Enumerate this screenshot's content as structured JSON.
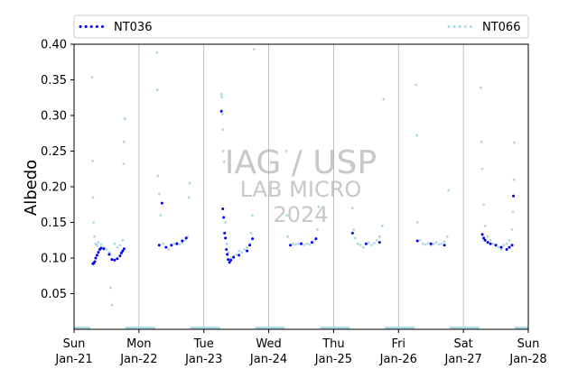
{
  "chart_data": {
    "type": "scatter",
    "title": "",
    "xlabel": "",
    "ylabel": "Albedo",
    "xlim": [
      "2024-01-21",
      "2024-01-28"
    ],
    "ylim": [
      0.0,
      0.4
    ],
    "yticks": [
      "0.05",
      "0.10",
      "0.15",
      "0.20",
      "0.25",
      "0.30",
      "0.35",
      "0.40"
    ],
    "xticks": [
      {
        "day": "Sun",
        "date": "Jan-21"
      },
      {
        "day": "Mon",
        "date": "Jan-22"
      },
      {
        "day": "Tue",
        "date": "Jan-23"
      },
      {
        "day": "Wed",
        "date": "Jan-24"
      },
      {
        "day": "Thu",
        "date": "Jan-25"
      },
      {
        "day": "Fri",
        "date": "Jan-26"
      },
      {
        "day": "Sat",
        "date": "Jan-27"
      },
      {
        "day": "Sun",
        "date": "Jan-28"
      }
    ],
    "grid": "vertical-at-day-boundaries",
    "legend_position": "top-outside",
    "watermark": [
      "IAG / USP",
      "LAB MICRO",
      "2024"
    ],
    "series": [
      {
        "name": "NT036",
        "color": "#0000ee",
        "x": [
          "2024-01-21T07:00",
          "2024-01-21T07:20",
          "2024-01-21T07:40",
          "2024-01-21T08:00",
          "2024-01-21T08:30",
          "2024-01-21T09:00",
          "2024-01-21T09:30",
          "2024-01-21T10:00",
          "2024-01-21T11:00",
          "2024-01-21T13:00",
          "2024-01-21T14:00",
          "2024-01-21T15:00",
          "2024-01-21T16:00",
          "2024-01-21T17:00",
          "2024-01-21T17:30",
          "2024-01-21T18:00",
          "2024-01-21T18:30",
          "2024-01-22T07:30",
          "2024-01-22T08:30",
          "2024-01-22T10:00",
          "2024-01-22T12:00",
          "2024-01-22T14:00",
          "2024-01-22T16:00",
          "2024-01-22T17:30",
          "2024-01-23T06:30",
          "2024-01-23T07:00",
          "2024-01-23T07:20",
          "2024-01-23T07:40",
          "2024-01-23T08:00",
          "2024-01-23T08:20",
          "2024-01-23T08:40",
          "2024-01-23T09:00",
          "2024-01-23T09:30",
          "2024-01-23T10:00",
          "2024-01-23T11:00",
          "2024-01-23T13:00",
          "2024-01-23T16:00",
          "2024-01-23T17:00",
          "2024-01-23T18:00",
          "2024-01-24T08:00",
          "2024-01-24T12:00",
          "2024-01-24T16:00",
          "2024-01-24T17:30",
          "2024-01-25T07:00",
          "2024-01-25T12:00",
          "2024-01-25T17:00",
          "2024-01-26T07:00",
          "2024-01-26T12:00",
          "2024-01-26T17:00",
          "2024-01-27T07:00",
          "2024-01-27T07:30",
          "2024-01-27T08:00",
          "2024-01-27T09:00",
          "2024-01-27T10:00",
          "2024-01-27T12:00",
          "2024-01-27T14:00",
          "2024-01-27T16:00",
          "2024-01-27T17:00",
          "2024-01-27T18:00",
          "2024-01-27T18:30"
        ],
        "y": [
          0.092,
          0.093,
          0.095,
          0.1,
          0.104,
          0.108,
          0.112,
          0.114,
          0.113,
          0.105,
          0.098,
          0.097,
          0.099,
          0.103,
          0.107,
          0.11,
          0.113,
          0.118,
          0.177,
          0.115,
          0.118,
          0.12,
          0.124,
          0.128,
          0.306,
          0.169,
          0.157,
          0.135,
          0.128,
          0.112,
          0.105,
          0.098,
          0.094,
          0.097,
          0.101,
          0.104,
          0.11,
          0.118,
          0.127,
          0.118,
          0.12,
          0.122,
          0.127,
          0.135,
          0.12,
          0.122,
          0.124,
          0.12,
          0.118,
          0.133,
          0.128,
          0.125,
          0.122,
          0.12,
          0.118,
          0.115,
          0.112,
          0.115,
          0.118,
          0.187
        ]
      },
      {
        "name": "NT066",
        "color": "#add8e6",
        "x": [
          "2024-01-21T06:40",
          "2024-01-21T06:50",
          "2024-01-21T07:00",
          "2024-01-21T07:15",
          "2024-01-21T07:30",
          "2024-01-21T08:00",
          "2024-01-21T08:30",
          "2024-01-21T09:00",
          "2024-01-21T10:00",
          "2024-01-21T11:00",
          "2024-01-21T12:00",
          "2024-01-21T13:00",
          "2024-01-21T13:30",
          "2024-01-21T14:00",
          "2024-01-21T15:00",
          "2024-01-21T16:00",
          "2024-01-21T17:00",
          "2024-01-21T18:00",
          "2024-01-21T18:20",
          "2024-01-21T18:30",
          "2024-01-21T18:40",
          "2024-01-21T18:50",
          "2024-01-22T06:40",
          "2024-01-22T06:50",
          "2024-01-22T07:00",
          "2024-01-22T07:30",
          "2024-01-22T08:00",
          "2024-01-22T09:00",
          "2024-01-22T10:00",
          "2024-01-22T11:00",
          "2024-01-22T12:00",
          "2024-01-22T13:00",
          "2024-01-22T14:00",
          "2024-01-22T15:00",
          "2024-01-22T16:00",
          "2024-01-22T17:00",
          "2024-01-22T18:00",
          "2024-01-22T18:30",
          "2024-01-22T18:45",
          "2024-01-23T06:30",
          "2024-01-23T06:40",
          "2024-01-23T06:50",
          "2024-01-23T07:00",
          "2024-01-23T07:10",
          "2024-01-23T07:30",
          "2024-01-23T08:00",
          "2024-01-23T08:30",
          "2024-01-23T09:00",
          "2024-01-23T10:00",
          "2024-01-23T11:00",
          "2024-01-23T12:00",
          "2024-01-23T13:00",
          "2024-01-23T14:00",
          "2024-01-23T15:00",
          "2024-01-23T16:00",
          "2024-01-23T17:00",
          "2024-01-23T17:30",
          "2024-01-23T18:00",
          "2024-01-23T18:30",
          "2024-01-24T06:30",
          "2024-01-24T06:45",
          "2024-01-24T07:00",
          "2024-01-24T08:00",
          "2024-01-24T09:00",
          "2024-01-24T10:00",
          "2024-01-24T11:00",
          "2024-01-24T12:00",
          "2024-01-24T13:00",
          "2024-01-24T14:00",
          "2024-01-24T15:00",
          "2024-01-24T16:00",
          "2024-01-24T17:00",
          "2024-01-24T18:00",
          "2024-01-24T18:30",
          "2024-01-25T06:30",
          "2024-01-25T07:00",
          "2024-01-25T07:30",
          "2024-01-25T08:00",
          "2024-01-25T09:00",
          "2024-01-25T10:00",
          "2024-01-25T11:00",
          "2024-01-25T12:00",
          "2024-01-25T13:00",
          "2024-01-25T14:00",
          "2024-01-25T15:00",
          "2024-01-25T16:00",
          "2024-01-25T17:00",
          "2024-01-25T18:00",
          "2024-01-25T18:30",
          "2024-01-26T06:30",
          "2024-01-26T06:45",
          "2024-01-26T07:00",
          "2024-01-26T08:00",
          "2024-01-26T09:00",
          "2024-01-26T10:00",
          "2024-01-26T11:00",
          "2024-01-26T12:00",
          "2024-01-26T13:00",
          "2024-01-26T14:00",
          "2024-01-26T15:00",
          "2024-01-26T16:00",
          "2024-01-26T17:00",
          "2024-01-26T18:00",
          "2024-01-26T18:30",
          "2024-01-27T06:30",
          "2024-01-27T06:45",
          "2024-01-27T07:00",
          "2024-01-27T07:30",
          "2024-01-27T08:00",
          "2024-01-27T09:00",
          "2024-01-27T10:00",
          "2024-01-27T11:00",
          "2024-01-27T12:00",
          "2024-01-27T13:00",
          "2024-01-27T14:00",
          "2024-01-27T15:00",
          "2024-01-27T16:00",
          "2024-01-27T17:00",
          "2024-01-27T18:00",
          "2024-01-27T18:20",
          "2024-01-27T18:40",
          "2024-01-27T18:50"
        ],
        "y": [
          0.354,
          0.236,
          0.185,
          0.15,
          0.13,
          0.12,
          0.118,
          0.122,
          0.119,
          0.115,
          0.112,
          0.108,
          0.058,
          0.034,
          0.12,
          0.115,
          0.118,
          0.125,
          0.232,
          0.263,
          0.296,
          0.295,
          0.388,
          0.336,
          0.215,
          0.19,
          0.16,
          0.12,
          0.115,
          0.112,
          0.118,
          0.12,
          0.122,
          0.119,
          0.121,
          0.125,
          0.13,
          0.185,
          0.205,
          0.33,
          0.326,
          0.302,
          0.28,
          0.25,
          0.235,
          0.15,
          0.12,
          0.108,
          0.1,
          0.103,
          0.105,
          0.11,
          0.108,
          0.112,
          0.115,
          0.12,
          0.135,
          0.16,
          0.393,
          0.25,
          0.16,
          0.13,
          0.118,
          0.12,
          0.119,
          0.12,
          0.121,
          0.118,
          0.12,
          0.119,
          0.122,
          0.125,
          0.14,
          0.172,
          0.23,
          0.17,
          0.14,
          0.128,
          0.12,
          0.118,
          0.115,
          0.12,
          0.122,
          0.118,
          0.121,
          0.125,
          0.13,
          0.145,
          0.323,
          0.343,
          0.272,
          0.15,
          0.125,
          0.12,
          0.119,
          0.121,
          0.118,
          0.12,
          0.122,
          0.119,
          0.12,
          0.123,
          0.13,
          0.195,
          0.339,
          0.263,
          0.225,
          0.175,
          0.145,
          0.13,
          0.125,
          0.12,
          0.118,
          0.115,
          0.112,
          0.118,
          0.12,
          0.125,
          0.14,
          0.165,
          0.21,
          0.262
        ]
      }
    ]
  }
}
